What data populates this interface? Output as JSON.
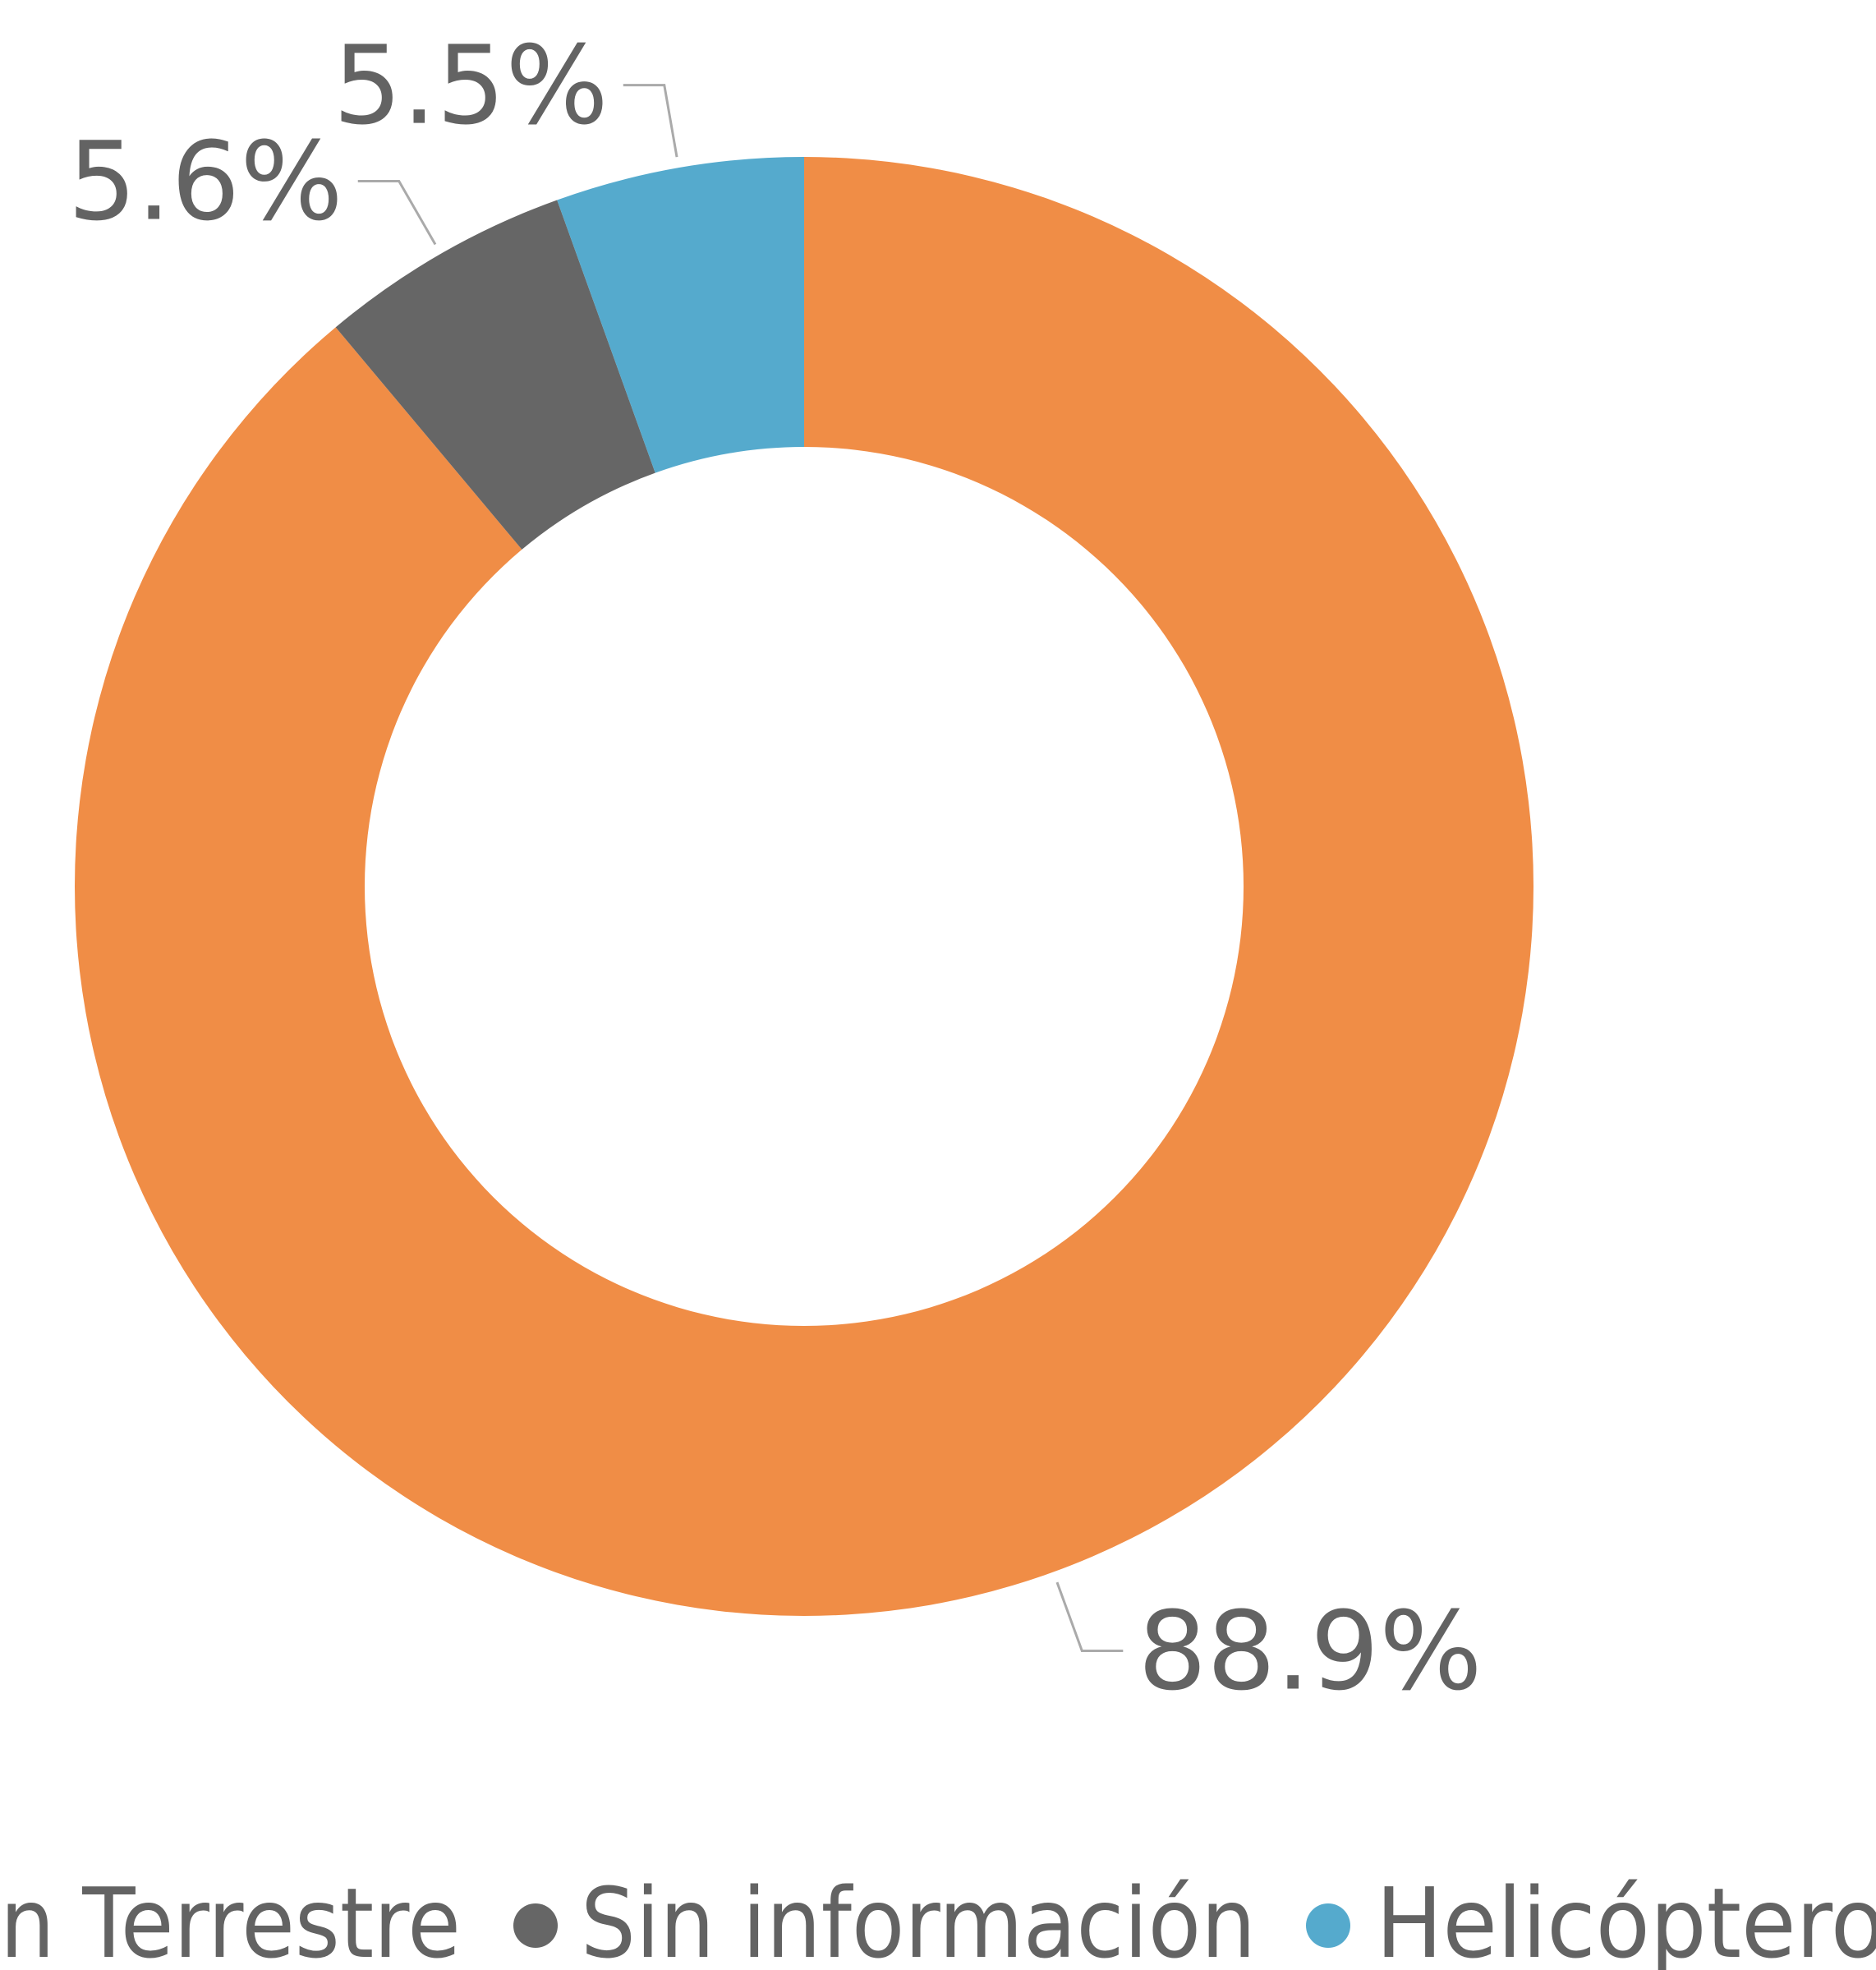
{
  "chart_data": {
    "type": "donut",
    "series": [
      {
        "name": "n Terrestre",
        "color": "#f08d46",
        "values": [
          88.9
        ],
        "value_labels": [
          "88.9%"
        ]
      },
      {
        "name": "Sin información",
        "color": "#666666",
        "values": [
          5.6
        ],
        "value_labels": [
          "5.6%"
        ]
      },
      {
        "name": "Helicóptero",
        "color": "#55aacd",
        "values": [
          5.5
        ],
        "value_labels": [
          "5.5%"
        ]
      }
    ]
  }
}
